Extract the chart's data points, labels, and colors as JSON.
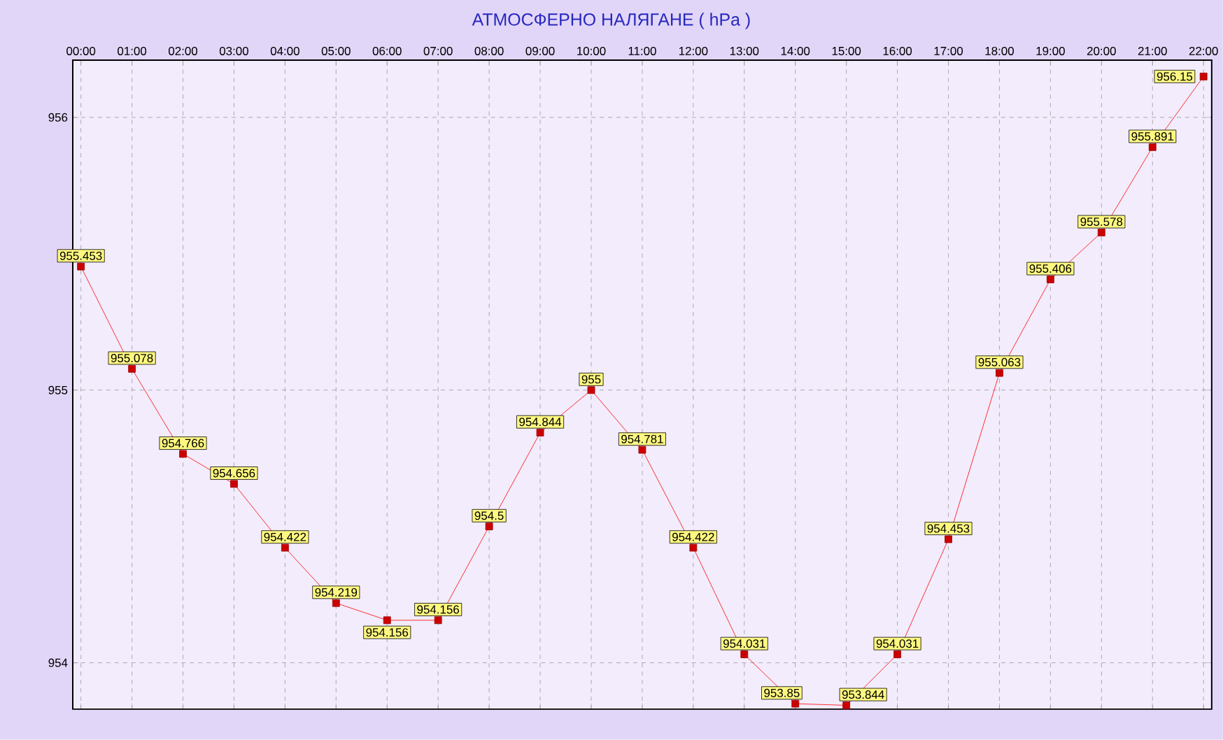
{
  "chart_data": {
    "type": "line",
    "title": "АТМОСФЕРНО НАЛЯГАНЕ  ( hPa )",
    "categories": [
      "00:00",
      "01:00",
      "02:00",
      "03:00",
      "04:00",
      "05:00",
      "06:00",
      "07:00",
      "08:00",
      "09:00",
      "10:00",
      "11:00",
      "12:00",
      "13:00",
      "14:00",
      "15:00",
      "16:00",
      "17:00",
      "18:00",
      "19:00",
      "20:00",
      "21:00",
      "22:00"
    ],
    "values": [
      955.453,
      955.078,
      954.766,
      954.656,
      954.422,
      954.219,
      954.156,
      954.156,
      954.5,
      954.844,
      955,
      954.781,
      954.422,
      954.031,
      953.85,
      953.844,
      954.031,
      954.453,
      955.063,
      955.406,
      955.578,
      955.891,
      956.15
    ],
    "value_labels": [
      "955.453",
      "955.078",
      "954.766",
      "954.656",
      "954.422",
      "954.219",
      "954.156",
      "954.156",
      "954.5",
      "954.844",
      "955",
      "954.781",
      "954.422",
      "954.031",
      "953.85",
      "953.844",
      "954.031",
      "954.453",
      "955.063",
      "955.406",
      "955.578",
      "955.891",
      "956.15"
    ],
    "color": "#ff0000",
    "ylim": [
      953.83,
      956.21
    ],
    "yticks": [
      954,
      955,
      956
    ],
    "grid": true,
    "marker": "square",
    "line_style": "solid"
  }
}
